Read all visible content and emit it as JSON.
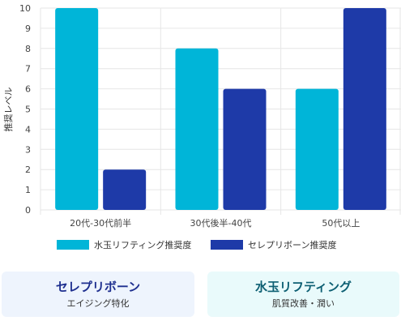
{
  "chart_data": {
    "type": "bar",
    "categories": [
      "20代-30代前半",
      "30代後半-40代",
      "50代以上"
    ],
    "series": [
      {
        "name": "水玉リフティング推奨度",
        "values": [
          10,
          8,
          6
        ],
        "color": "#00b5d8"
      },
      {
        "name": "セレプリボーン推奨度",
        "values": [
          2,
          6,
          10
        ],
        "color": "#1e3aa8"
      }
    ],
    "title": "",
    "xlabel": "",
    "ylabel": "推奨レベル",
    "ylim": [
      0,
      10
    ],
    "yticks": [
      0,
      1,
      2,
      3,
      4,
      5,
      6,
      7,
      8,
      9,
      10
    ],
    "grid": true,
    "legend": "bottom"
  },
  "cards": [
    {
      "title": "セレプリボーン",
      "subtitle": "エイジング特化"
    },
    {
      "title": "水玉リフティング",
      "subtitle": "肌質改善・潤い"
    }
  ]
}
